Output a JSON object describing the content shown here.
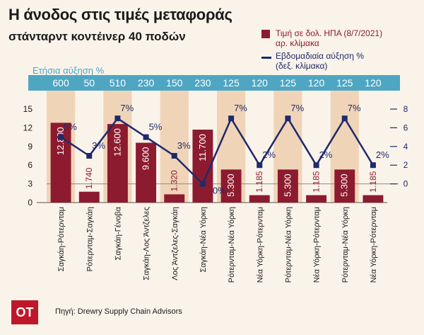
{
  "header": {
    "title": "Η άνοδος στις τιμές μεταφοράς",
    "subtitle": "στάνταρντ κοντέινερ 40 ποδών"
  },
  "legend": {
    "bars_label_1": "Τιμή σε δολ. ΗΠΑ (8/7/2021)",
    "bars_label_2": "αρ. κλίμακα",
    "line_label_1": "Εβδομαδιαία αύξηση %",
    "line_label_2": "(δεξ. κλίμακα)"
  },
  "annual_label": "Ετήσια αύξηση %",
  "footer": {
    "logo": "OT",
    "source": "Πηγή: Drewry Supply Chain Advisors"
  },
  "colors": {
    "bar": "#8c1b2f",
    "line": "#1f2a6b",
    "strip": "#4ea6c2",
    "band": "#f0d4b8"
  },
  "chart_data": {
    "type": "bar",
    "categories": [
      "Σαγκάη-Ρότερνταμ",
      "Ρότερνταμ-Σαγκάη",
      "Σαγκάη-Γένοβα",
      "Σαγκάη-Λος Άντζελες",
      "Λος Άντζελες-Σαγκάη",
      "Σαγκάη-Νέα Υόρκη",
      "Ρότερνταμ-Νέα Υόρκη",
      "Νέα Υόρκη-Ρότερνταμ",
      "Ρότερνταμ-Νέα Υόρκη",
      "Νέα Υόρκη-Ρότερνταμ",
      "Ρότερνταμ-Νέα Υόρκη",
      "Νέα Υόρκη-Ρότερνταμ"
    ],
    "bar_labels": [
      "12.800",
      "1.740",
      "12.600",
      "9.600",
      "1.320",
      "11.700",
      "5.300",
      "1.185",
      "5.300",
      "1.185",
      "5.300",
      "1.185"
    ],
    "values": [
      12.8,
      1.74,
      12.6,
      9.6,
      1.32,
      11.7,
      5.3,
      1.185,
      5.3,
      1.185,
      5.3,
      1.185
    ],
    "weekly": [
      5,
      3,
      7,
      5,
      3,
      0,
      7,
      2,
      7,
      2,
      7,
      2
    ],
    "weekly_labels": [
      "5%",
      "3%",
      "7%",
      "5%",
      "3%",
      "0%",
      "7%",
      "2%",
      "7%",
      "2%",
      "7%",
      "2%"
    ],
    "annual": [
      "600",
      "50",
      "510",
      "230",
      "150",
      "230",
      "125",
      "120",
      "125",
      "120",
      "125",
      "120"
    ],
    "ylim": [
      0,
      15
    ],
    "yticks": [
      "0",
      "3",
      "6",
      "9",
      "12",
      "15"
    ],
    "y2lim": [
      -2,
      8
    ],
    "y2ticks": [
      "0",
      "2",
      "4",
      "6",
      "8"
    ],
    "xlabel": "",
    "ylabel": ""
  }
}
